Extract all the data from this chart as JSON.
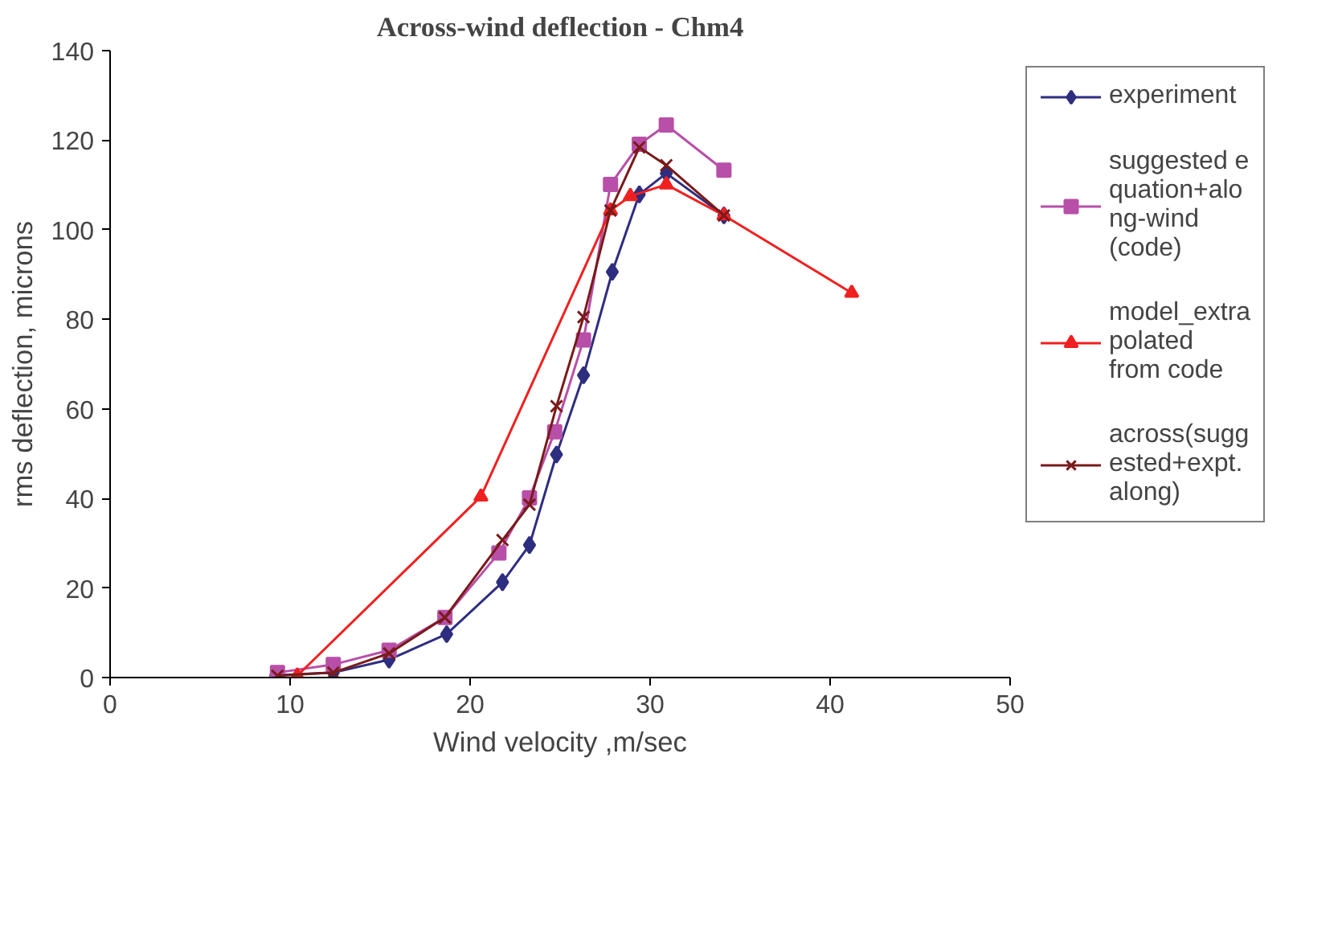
{
  "chart_data": {
    "type": "line",
    "title": "Across-wind deflection - Chm4",
    "xlabel": "Wind velocity ,m/sec",
    "ylabel": "rms deflection, microns",
    "xlim": [
      0,
      50
    ],
    "xticks": [
      0,
      10,
      20,
      30,
      40,
      50
    ],
    "ylim": [
      0,
      140
    ],
    "yticks": [
      0,
      20,
      40,
      60,
      80,
      100,
      120,
      140
    ],
    "grid": false,
    "legend": "right",
    "line_style": "solid",
    "series": [
      {
        "name": "experiment",
        "color": "#2e2e80",
        "marker": "diamond",
        "x": [
          9.2,
          12.4,
          15.5,
          18.7,
          21.8,
          23.3,
          24.8,
          26.3,
          27.9,
          29.4,
          30.9,
          34.1
        ],
        "values": [
          0.5,
          1.1,
          4.0,
          9.7,
          21.3,
          29.6,
          49.8,
          67.5,
          90.6,
          107.9,
          112.6,
          103.2
        ]
      },
      {
        "name": "suggested equation+along-wind (code)",
        "color": "#b84fa8",
        "marker": "square",
        "x": [
          9.3,
          12.4,
          15.5,
          18.6,
          21.6,
          23.3,
          24.7,
          26.3,
          27.8,
          29.4,
          30.9,
          34.1
        ],
        "values": [
          1.1,
          2.9,
          6.1,
          13.4,
          27.8,
          40.1,
          54.9,
          75.4,
          110.1,
          119.1,
          123.4,
          113.3
        ]
      },
      {
        "name": "model_extrapolated from code",
        "color": "#f02020",
        "marker": "triangle",
        "x": [
          10.4,
          20.6,
          27.8,
          28.9,
          30.9,
          34.1,
          41.2
        ],
        "values": [
          0.4,
          40.4,
          104.3,
          107.5,
          110.1,
          103.2,
          85.9
        ]
      },
      {
        "name": "across(suggested+expt. along)",
        "color": "#7a1a1a",
        "marker": "cross",
        "x": [
          9.3,
          12.4,
          15.5,
          18.6,
          21.8,
          23.3,
          24.8,
          26.3,
          27.8,
          29.4,
          30.9,
          34.1
        ],
        "values": [
          0.4,
          1.1,
          5.4,
          13.4,
          30.7,
          38.6,
          60.6,
          80.5,
          104.3,
          118.4,
          114.4,
          103.2
        ]
      }
    ]
  }
}
